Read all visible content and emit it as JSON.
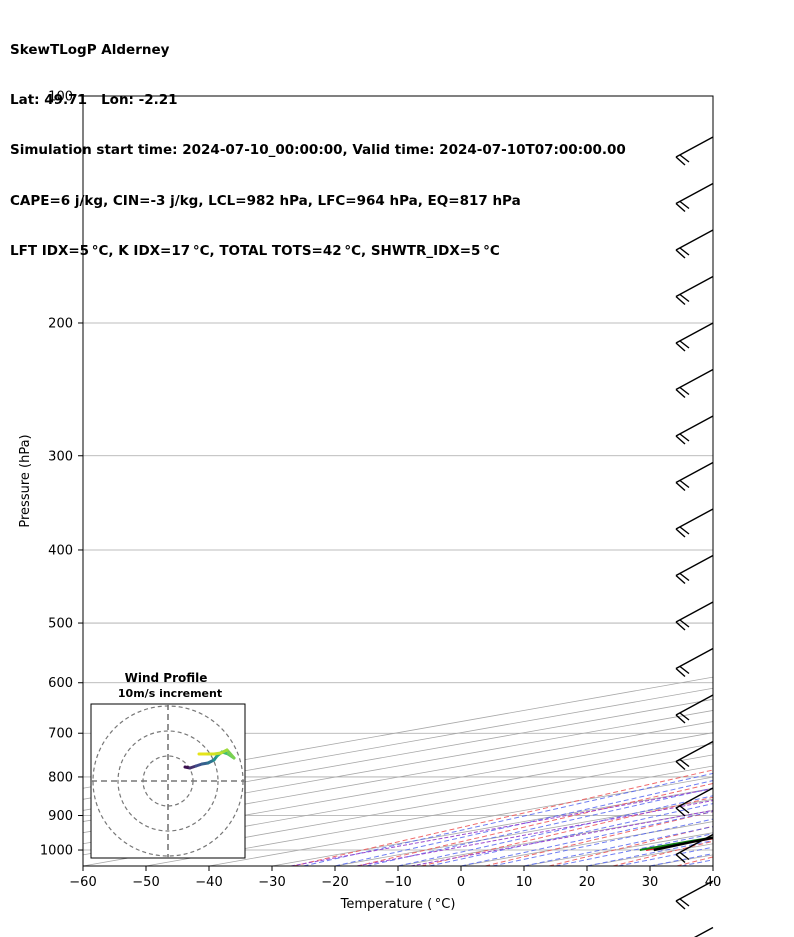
{
  "header": {
    "line1": "SkewTLogP Alderney",
    "line2": "Lat: 49.71   Lon: -2.21",
    "line3": "Simulation start time: 2024-07-10_00:00:00, Valid time: 2024-07-10T07:00:00.00",
    "line4": "CAPE=6 j/kg, CIN=-3 j/kg, LCL=982 hPa, LFC=964 hPa, EQ=817 hPa",
    "line5": "LFT IDX=5 °C, K IDX=17 °C, TOTAL TOTS=42 °C, SHWTR_IDX=5 °C"
  },
  "colors": {
    "temperature": "#e8141c",
    "dewpoint": "#0b7d10",
    "parcel": "#000000",
    "cape_fill": "#7fb0d3",
    "dry_adiabat": "#ee5a5a",
    "moist_adiabat": "#4a5ef0",
    "mixing_ratio": "#9a4ad0",
    "isotherm": "#a8a8a8"
  },
  "chart_data": {
    "type": "line",
    "title": "",
    "xlabel": "Temperature ( °C)",
    "ylabel": "Pressure (hPa)",
    "xlim": [
      -60,
      40
    ],
    "ylim": [
      1050,
      100
    ],
    "y_scale": "log",
    "skew": true,
    "x_ticks": [
      -60,
      -50,
      -40,
      -30,
      -20,
      -10,
      0,
      10,
      20,
      30,
      40
    ],
    "y_ticks": [
      100,
      200,
      300,
      400,
      500,
      600,
      700,
      800,
      900,
      1000
    ],
    "grid": true,
    "series": [
      {
        "name": "temperature",
        "points": [
          [
            1000,
            15.0
          ],
          [
            975,
            15.0
          ],
          [
            950,
            15.5
          ],
          [
            925,
            15.5
          ],
          [
            900,
            16.0
          ],
          [
            850,
            16.3
          ],
          [
            800,
            16.8
          ],
          [
            750,
            17.0
          ],
          [
            700,
            17.0
          ],
          [
            650,
            17.0
          ],
          [
            600,
            16.4
          ],
          [
            550,
            15.5
          ],
          [
            500,
            14.3
          ],
          [
            450,
            13.0
          ],
          [
            400,
            11.8
          ],
          [
            350,
            10.7
          ],
          [
            320,
            10.0
          ],
          [
            300,
            10.5
          ],
          [
            280,
            12.0
          ],
          [
            260,
            15.5
          ],
          [
            250,
            17.5
          ],
          [
            240,
            20.0
          ],
          [
            220,
            24.5
          ],
          [
            205,
            30.0
          ],
          [
            195,
            33.0
          ],
          [
            180,
            35.0
          ],
          [
            160,
            38.0
          ],
          [
            140,
            41.0
          ],
          [
            120,
            43.5
          ],
          [
            100,
            47.0
          ]
        ]
      },
      {
        "name": "dewpoint",
        "points": [
          [
            1000,
            14.0
          ],
          [
            975,
            14.0
          ],
          [
            950,
            14.5
          ],
          [
            900,
            14.5
          ],
          [
            850,
            14.0
          ],
          [
            800,
            11.5
          ],
          [
            750,
            6.5
          ],
          [
            700,
            4.5
          ],
          [
            650,
            3.5
          ],
          [
            600,
            1.5
          ],
          [
            550,
            -1.0
          ],
          [
            500,
            -7.0
          ],
          [
            470,
            -9.5
          ],
          [
            430,
            -9.5
          ],
          [
            400,
            -7.5
          ],
          [
            380,
            -4.0
          ],
          [
            360,
            0.5
          ],
          [
            330,
            0.0
          ],
          [
            310,
            -2.0
          ],
          [
            290,
            -8.0
          ],
          [
            270,
            -13.0
          ],
          [
            260,
            -10.5
          ],
          [
            240,
            -5.0
          ],
          [
            225,
            -2.0
          ],
          [
            205,
            -3.0
          ],
          [
            190,
            -12.0
          ],
          [
            170,
            -16.0
          ],
          [
            150,
            -18.0
          ],
          [
            120,
            -24.0
          ],
          [
            100,
            -33.0
          ]
        ]
      },
      {
        "name": "parcel",
        "points": [
          [
            1000,
            16.2
          ],
          [
            975,
            15.0
          ],
          [
            950,
            14.0
          ],
          [
            925,
            13.8
          ],
          [
            900,
            13.5
          ],
          [
            850,
            13.2
          ],
          [
            800,
            12.5
          ],
          [
            750,
            11.5
          ],
          [
            700,
            10.2
          ],
          [
            650,
            8.5
          ],
          [
            600,
            6.5
          ],
          [
            550,
            4.0
          ],
          [
            500,
            1.0
          ],
          [
            450,
            -2.5
          ],
          [
            400,
            -6.5
          ],
          [
            350,
            -11.5
          ],
          [
            300,
            -17.0
          ],
          [
            250,
            -25.0
          ],
          [
            200,
            -34.0
          ],
          [
            150,
            -46.0
          ],
          [
            100,
            -63.0
          ]
        ]
      }
    ],
    "inset": {
      "title": "Wind Profile",
      "subtitle": "10m/s increment"
    }
  }
}
